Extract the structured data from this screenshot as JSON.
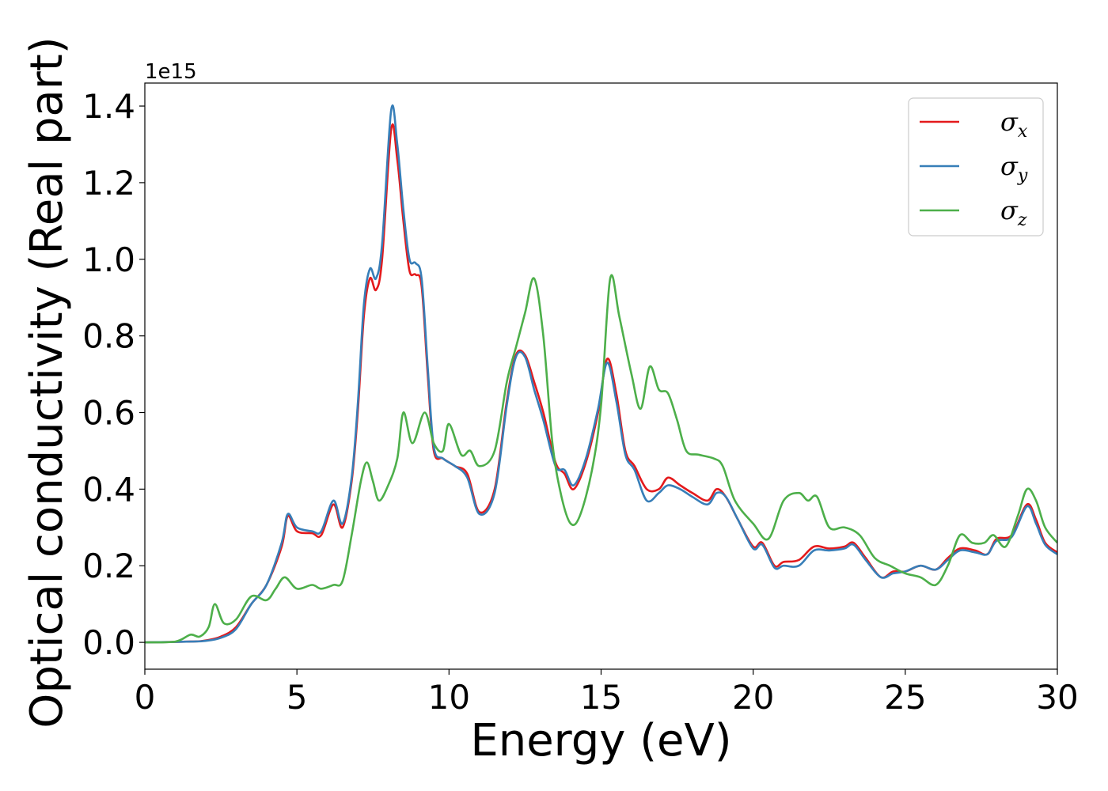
{
  "chart_data": {
    "type": "line",
    "xlabel": "Energy (eV)",
    "ylabel": "Optical conductivity (Real part)",
    "offset_label": "1e15",
    "xlim": [
      0,
      30
    ],
    "ylim": [
      -0.07,
      1.46
    ],
    "xticks": [
      0,
      5,
      10,
      15,
      20,
      25,
      30
    ],
    "xtick_labels": [
      "0",
      "5",
      "10",
      "15",
      "20",
      "25",
      "30"
    ],
    "yticks": [
      0.0,
      0.2,
      0.4,
      0.6,
      0.8,
      1.0,
      1.2,
      1.4
    ],
    "ytick_labels": [
      "0.0",
      "0.2",
      "0.4",
      "0.6",
      "0.8",
      "1.0",
      "1.2",
      "1.4"
    ],
    "legend_position": "top-right",
    "grid": false,
    "series": [
      {
        "name": "σ",
        "subscript": "x",
        "color": "#e41a1c",
        "points": [
          [
            0,
            0
          ],
          [
            1.5,
            0.002
          ],
          [
            2,
            0.005
          ],
          [
            2.5,
            0.015
          ],
          [
            3,
            0.04
          ],
          [
            3.5,
            0.1
          ],
          [
            4,
            0.15
          ],
          [
            4.5,
            0.25
          ],
          [
            4.7,
            0.33
          ],
          [
            5,
            0.29
          ],
          [
            5.5,
            0.285
          ],
          [
            5.8,
            0.28
          ],
          [
            6.2,
            0.36
          ],
          [
            6.5,
            0.3
          ],
          [
            6.8,
            0.42
          ],
          [
            7,
            0.6
          ],
          [
            7.2,
            0.85
          ],
          [
            7.4,
            0.95
          ],
          [
            7.6,
            0.92
          ],
          [
            7.8,
            1.0
          ],
          [
            8.1,
            1.34
          ],
          [
            8.3,
            1.26
          ],
          [
            8.5,
            1.1
          ],
          [
            8.7,
            0.97
          ],
          [
            8.9,
            0.96
          ],
          [
            9.1,
            0.93
          ],
          [
            9.3,
            0.7
          ],
          [
            9.5,
            0.5
          ],
          [
            9.8,
            0.48
          ],
          [
            10.2,
            0.46
          ],
          [
            10.6,
            0.44
          ],
          [
            11,
            0.34
          ],
          [
            11.5,
            0.4
          ],
          [
            11.9,
            0.63
          ],
          [
            12.2,
            0.75
          ],
          [
            12.5,
            0.75
          ],
          [
            12.8,
            0.68
          ],
          [
            13.1,
            0.6
          ],
          [
            13.5,
            0.47
          ],
          [
            13.8,
            0.44
          ],
          [
            14.1,
            0.4
          ],
          [
            14.5,
            0.47
          ],
          [
            14.9,
            0.6
          ],
          [
            15.2,
            0.74
          ],
          [
            15.5,
            0.65
          ],
          [
            15.8,
            0.5
          ],
          [
            16.1,
            0.46
          ],
          [
            16.5,
            0.4
          ],
          [
            16.9,
            0.4
          ],
          [
            17.2,
            0.43
          ],
          [
            17.6,
            0.41
          ],
          [
            18,
            0.39
          ],
          [
            18.5,
            0.37
          ],
          [
            18.8,
            0.4
          ],
          [
            19.1,
            0.38
          ],
          [
            19.5,
            0.32
          ],
          [
            20,
            0.25
          ],
          [
            20.3,
            0.26
          ],
          [
            20.7,
            0.2
          ],
          [
            21,
            0.21
          ],
          [
            21.5,
            0.215
          ],
          [
            22,
            0.25
          ],
          [
            22.5,
            0.245
          ],
          [
            23,
            0.25
          ],
          [
            23.3,
            0.26
          ],
          [
            23.7,
            0.22
          ],
          [
            24.2,
            0.17
          ],
          [
            24.6,
            0.185
          ],
          [
            25,
            0.185
          ],
          [
            25.5,
            0.2
          ],
          [
            26,
            0.19
          ],
          [
            26.4,
            0.22
          ],
          [
            26.8,
            0.245
          ],
          [
            27.3,
            0.24
          ],
          [
            27.7,
            0.23
          ],
          [
            28,
            0.27
          ],
          [
            28.5,
            0.28
          ],
          [
            29,
            0.36
          ],
          [
            29.3,
            0.32
          ],
          [
            29.6,
            0.26
          ],
          [
            30,
            0.235
          ]
        ]
      },
      {
        "name": "σ",
        "subscript": "y",
        "color": "#377eb8",
        "points": [
          [
            0,
            0
          ],
          [
            1.5,
            0.002
          ],
          [
            2,
            0.004
          ],
          [
            2.5,
            0.012
          ],
          [
            3,
            0.035
          ],
          [
            3.5,
            0.1
          ],
          [
            4,
            0.15
          ],
          [
            4.5,
            0.26
          ],
          [
            4.7,
            0.335
          ],
          [
            5,
            0.3
          ],
          [
            5.5,
            0.29
          ],
          [
            5.8,
            0.29
          ],
          [
            6.2,
            0.37
          ],
          [
            6.5,
            0.31
          ],
          [
            6.8,
            0.43
          ],
          [
            7,
            0.62
          ],
          [
            7.2,
            0.88
          ],
          [
            7.4,
            0.975
          ],
          [
            7.6,
            0.95
          ],
          [
            7.8,
            1.04
          ],
          [
            8.1,
            1.39
          ],
          [
            8.3,
            1.3
          ],
          [
            8.5,
            1.13
          ],
          [
            8.7,
            1.0
          ],
          [
            8.9,
            0.99
          ],
          [
            9.1,
            0.95
          ],
          [
            9.3,
            0.72
          ],
          [
            9.5,
            0.51
          ],
          [
            9.8,
            0.48
          ],
          [
            10.2,
            0.46
          ],
          [
            10.6,
            0.43
          ],
          [
            11,
            0.335
          ],
          [
            11.5,
            0.39
          ],
          [
            11.9,
            0.62
          ],
          [
            12.2,
            0.745
          ],
          [
            12.5,
            0.745
          ],
          [
            12.8,
            0.66
          ],
          [
            13.1,
            0.58
          ],
          [
            13.5,
            0.46
          ],
          [
            13.8,
            0.45
          ],
          [
            14.1,
            0.41
          ],
          [
            14.5,
            0.48
          ],
          [
            14.9,
            0.61
          ],
          [
            15.2,
            0.73
          ],
          [
            15.5,
            0.63
          ],
          [
            15.8,
            0.49
          ],
          [
            16.1,
            0.45
          ],
          [
            16.5,
            0.37
          ],
          [
            16.9,
            0.39
          ],
          [
            17.2,
            0.41
          ],
          [
            17.6,
            0.4
          ],
          [
            18,
            0.38
          ],
          [
            18.5,
            0.36
          ],
          [
            18.8,
            0.39
          ],
          [
            19.1,
            0.38
          ],
          [
            19.5,
            0.32
          ],
          [
            20,
            0.245
          ],
          [
            20.3,
            0.255
          ],
          [
            20.7,
            0.195
          ],
          [
            21,
            0.2
          ],
          [
            21.5,
            0.2
          ],
          [
            22,
            0.24
          ],
          [
            22.5,
            0.24
          ],
          [
            23,
            0.245
          ],
          [
            23.3,
            0.255
          ],
          [
            23.7,
            0.215
          ],
          [
            24.2,
            0.17
          ],
          [
            24.6,
            0.18
          ],
          [
            25,
            0.185
          ],
          [
            25.5,
            0.2
          ],
          [
            26,
            0.19
          ],
          [
            26.4,
            0.215
          ],
          [
            26.8,
            0.24
          ],
          [
            27.3,
            0.235
          ],
          [
            27.7,
            0.23
          ],
          [
            28,
            0.265
          ],
          [
            28.5,
            0.275
          ],
          [
            29,
            0.355
          ],
          [
            29.3,
            0.31
          ],
          [
            29.6,
            0.255
          ],
          [
            30,
            0.23
          ]
        ]
      },
      {
        "name": "σ",
        "subscript": "z",
        "color": "#4daf4a",
        "points": [
          [
            0,
            0
          ],
          [
            1,
            0.002
          ],
          [
            1.5,
            0.02
          ],
          [
            1.8,
            0.015
          ],
          [
            2.1,
            0.04
          ],
          [
            2.3,
            0.1
          ],
          [
            2.6,
            0.05
          ],
          [
            3,
            0.06
          ],
          [
            3.5,
            0.12
          ],
          [
            4,
            0.11
          ],
          [
            4.3,
            0.14
          ],
          [
            4.6,
            0.17
          ],
          [
            5,
            0.14
          ],
          [
            5.5,
            0.15
          ],
          [
            5.8,
            0.14
          ],
          [
            6.2,
            0.15
          ],
          [
            6.5,
            0.16
          ],
          [
            6.8,
            0.28
          ],
          [
            7.1,
            0.42
          ],
          [
            7.3,
            0.47
          ],
          [
            7.5,
            0.42
          ],
          [
            7.7,
            0.37
          ],
          [
            8,
            0.41
          ],
          [
            8.3,
            0.48
          ],
          [
            8.5,
            0.6
          ],
          [
            8.8,
            0.52
          ],
          [
            9.2,
            0.6
          ],
          [
            9.5,
            0.52
          ],
          [
            9.8,
            0.5
          ],
          [
            10,
            0.57
          ],
          [
            10.4,
            0.49
          ],
          [
            10.7,
            0.5
          ],
          [
            11,
            0.46
          ],
          [
            11.5,
            0.5
          ],
          [
            11.9,
            0.68
          ],
          [
            12.2,
            0.77
          ],
          [
            12.5,
            0.86
          ],
          [
            12.8,
            0.95
          ],
          [
            13.1,
            0.8
          ],
          [
            13.4,
            0.52
          ],
          [
            13.7,
            0.38
          ],
          [
            14,
            0.31
          ],
          [
            14.3,
            0.33
          ],
          [
            14.7,
            0.45
          ],
          [
            15,
            0.62
          ],
          [
            15.3,
            0.95
          ],
          [
            15.6,
            0.85
          ],
          [
            16,
            0.7
          ],
          [
            16.3,
            0.61
          ],
          [
            16.6,
            0.72
          ],
          [
            16.9,
            0.66
          ],
          [
            17.2,
            0.65
          ],
          [
            17.5,
            0.58
          ],
          [
            17.8,
            0.5
          ],
          [
            18.2,
            0.49
          ],
          [
            18.7,
            0.48
          ],
          [
            19,
            0.46
          ],
          [
            19.4,
            0.37
          ],
          [
            20,
            0.31
          ],
          [
            20.5,
            0.27
          ],
          [
            21,
            0.37
          ],
          [
            21.5,
            0.39
          ],
          [
            21.8,
            0.37
          ],
          [
            22.1,
            0.38
          ],
          [
            22.5,
            0.3
          ],
          [
            23,
            0.3
          ],
          [
            23.5,
            0.28
          ],
          [
            24,
            0.22
          ],
          [
            24.5,
            0.2
          ],
          [
            25,
            0.18
          ],
          [
            25.5,
            0.17
          ],
          [
            26,
            0.15
          ],
          [
            26.4,
            0.2
          ],
          [
            26.8,
            0.28
          ],
          [
            27.2,
            0.26
          ],
          [
            27.6,
            0.26
          ],
          [
            27.9,
            0.28
          ],
          [
            28.3,
            0.25
          ],
          [
            28.7,
            0.33
          ],
          [
            29,
            0.4
          ],
          [
            29.3,
            0.37
          ],
          [
            29.6,
            0.3
          ],
          [
            30,
            0.26
          ]
        ]
      }
    ]
  }
}
